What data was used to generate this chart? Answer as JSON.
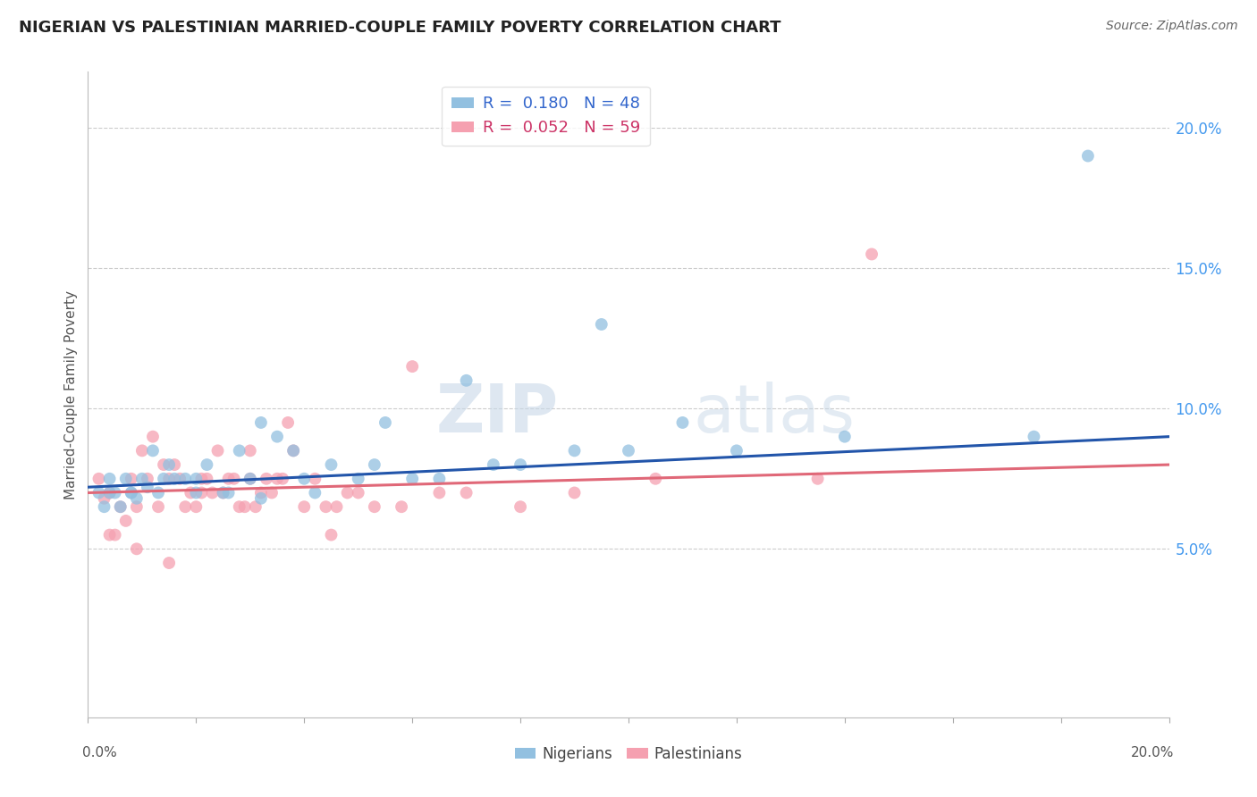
{
  "title": "NIGERIAN VS PALESTINIAN MARRIED-COUPLE FAMILY POVERTY CORRELATION CHART",
  "source": "Source: ZipAtlas.com",
  "ylabel": "Married-Couple Family Poverty",
  "right_yticks": [
    "5.0%",
    "10.0%",
    "15.0%",
    "20.0%"
  ],
  "right_ytick_vals": [
    5.0,
    10.0,
    15.0,
    20.0
  ],
  "legend_bottom": [
    "Nigerians",
    "Palestinians"
  ],
  "nigerian_color": "#92c0e0",
  "palestinian_color": "#f5a0b0",
  "nigerian_line_color": "#2255aa",
  "palestinian_line_color": "#e06878",
  "watermark_zip": "ZIP",
  "watermark_atlas": "atlas",
  "xlim": [
    0.0,
    20.0
  ],
  "ylim": [
    -1.0,
    22.0
  ],
  "nigerian_scatter_x": [
    0.2,
    0.3,
    0.4,
    0.5,
    0.6,
    0.7,
    0.8,
    0.9,
    1.0,
    1.1,
    1.2,
    1.3,
    1.5,
    1.6,
    1.8,
    2.0,
    2.2,
    2.5,
    2.8,
    3.0,
    3.2,
    3.5,
    3.8,
    4.0,
    4.5,
    5.0,
    5.5,
    6.0,
    7.0,
    7.5,
    8.0,
    9.0,
    10.0,
    11.0,
    12.0,
    14.0,
    17.5,
    0.4,
    0.8,
    1.4,
    2.0,
    2.6,
    3.2,
    4.2,
    5.3,
    6.5,
    9.5,
    18.5
  ],
  "nigerian_scatter_y": [
    7.0,
    6.5,
    7.5,
    7.0,
    6.5,
    7.5,
    7.0,
    6.8,
    7.5,
    7.2,
    8.5,
    7.0,
    8.0,
    7.5,
    7.5,
    7.0,
    8.0,
    7.0,
    8.5,
    7.5,
    9.5,
    9.0,
    8.5,
    7.5,
    8.0,
    7.5,
    9.5,
    7.5,
    11.0,
    8.0,
    8.0,
    8.5,
    8.5,
    9.5,
    8.5,
    9.0,
    9.0,
    7.0,
    7.0,
    7.5,
    7.5,
    7.0,
    6.8,
    7.0,
    8.0,
    7.5,
    13.0,
    19.0
  ],
  "palestinian_scatter_x": [
    0.2,
    0.3,
    0.4,
    0.5,
    0.6,
    0.7,
    0.8,
    0.9,
    1.0,
    1.1,
    1.2,
    1.3,
    1.4,
    1.5,
    1.6,
    1.7,
    1.8,
    1.9,
    2.0,
    2.1,
    2.2,
    2.3,
    2.4,
    2.5,
    2.6,
    2.7,
    2.8,
    2.9,
    3.0,
    3.1,
    3.2,
    3.3,
    3.4,
    3.5,
    3.6,
    3.7,
    3.8,
    4.0,
    4.2,
    4.4,
    4.6,
    4.8,
    5.0,
    5.3,
    5.8,
    6.5,
    7.0,
    8.0,
    9.0,
    10.5,
    13.5,
    0.4,
    0.9,
    1.5,
    2.1,
    3.0,
    4.5,
    6.0,
    14.5
  ],
  "palestinian_scatter_y": [
    7.5,
    6.8,
    7.0,
    5.5,
    6.5,
    6.0,
    7.5,
    6.5,
    8.5,
    7.5,
    9.0,
    6.5,
    8.0,
    7.5,
    8.0,
    7.5,
    6.5,
    7.0,
    6.5,
    7.0,
    7.5,
    7.0,
    8.5,
    7.0,
    7.5,
    7.5,
    6.5,
    6.5,
    7.5,
    6.5,
    7.0,
    7.5,
    7.0,
    7.5,
    7.5,
    9.5,
    8.5,
    6.5,
    7.5,
    6.5,
    6.5,
    7.0,
    7.0,
    6.5,
    6.5,
    7.0,
    7.0,
    6.5,
    7.0,
    7.5,
    7.5,
    5.5,
    5.0,
    4.5,
    7.5,
    8.5,
    5.5,
    11.5,
    15.5
  ],
  "nig_line_x": [
    0.0,
    20.0
  ],
  "nig_line_y": [
    7.2,
    9.0
  ],
  "pal_line_x": [
    0.0,
    20.0
  ],
  "pal_line_y": [
    7.0,
    8.0
  ]
}
